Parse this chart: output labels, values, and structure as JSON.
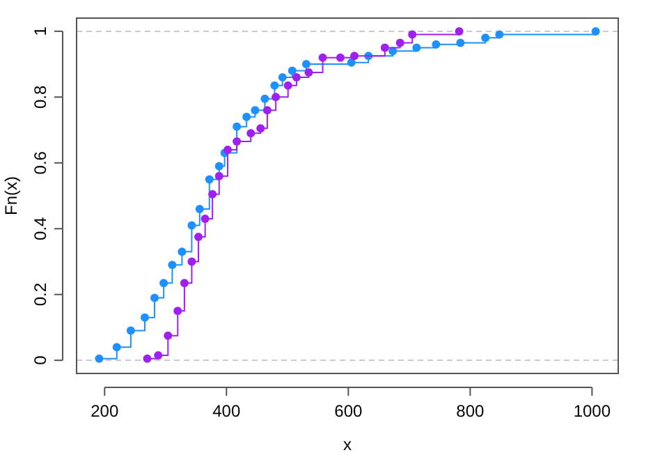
{
  "chart_data": {
    "type": "step",
    "xlabel": "x",
    "ylabel": "Fn(x)",
    "xlim": [
      154,
      1043
    ],
    "ylim": [
      -0.04,
      1.04
    ],
    "xticks": [
      200,
      400,
      600,
      800,
      1000
    ],
    "yticks": [
      0,
      0.2,
      0.4,
      0.6,
      0.8,
      1.0
    ],
    "marker": "circle",
    "grid": false,
    "line_style": "solid",
    "series": [
      {
        "color": "#1e90ff",
        "x": [
          191,
          220,
          243,
          266,
          282,
          297,
          311,
          327,
          343,
          356,
          372,
          388,
          397,
          417,
          433,
          447,
          463,
          479,
          492,
          508,
          531,
          605,
          633,
          673,
          712,
          744,
          784,
          825,
          848,
          1006
        ],
        "values": [
          0.005,
          0.04,
          0.09,
          0.13,
          0.19,
          0.235,
          0.29,
          0.33,
          0.41,
          0.46,
          0.55,
          0.59,
          0.63,
          0.71,
          0.74,
          0.76,
          0.795,
          0.835,
          0.86,
          0.88,
          0.9,
          0.905,
          0.925,
          0.94,
          0.95,
          0.96,
          0.965,
          0.98,
          0.99,
          1.0
        ]
      },
      {
        "color": "#a020f0",
        "x": [
          270,
          288,
          304,
          320,
          331,
          343,
          354,
          365,
          377,
          388,
          402,
          417,
          440,
          456,
          467,
          481,
          501,
          515,
          535,
          558,
          587,
          610,
          660,
          685,
          705,
          782
        ],
        "values": [
          0.005,
          0.015,
          0.075,
          0.15,
          0.235,
          0.3,
          0.375,
          0.43,
          0.505,
          0.56,
          0.64,
          0.665,
          0.69,
          0.705,
          0.76,
          0.8,
          0.835,
          0.86,
          0.875,
          0.92,
          0.92,
          0.925,
          0.95,
          0.965,
          0.99,
          1.0
        ]
      }
    ],
    "ref_lines": [
      {
        "axis": "y",
        "value": 0,
        "color": "#c8c8d8",
        "line_style": "dashed"
      },
      {
        "axis": "y",
        "value": 1,
        "color": "#c8c8d8",
        "line_style": "dashed"
      }
    ]
  }
}
